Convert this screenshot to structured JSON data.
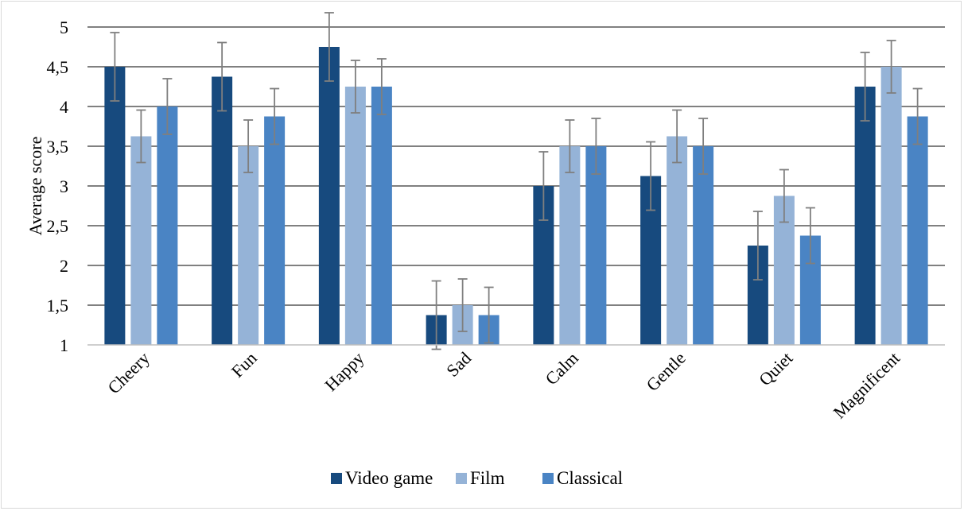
{
  "chart_data": {
    "type": "bar",
    "title": "",
    "xlabel": "",
    "ylabel": "Average score",
    "ylim": [
      1,
      5
    ],
    "yticks": [
      "1",
      "1,5",
      "2",
      "2,5",
      "3",
      "3,5",
      "4",
      "4,5",
      "5"
    ],
    "ytick_values": [
      1,
      1.5,
      2,
      2.5,
      3,
      3.5,
      4,
      4.5,
      5
    ],
    "grid": true,
    "legend_position": "bottom",
    "categories": [
      "Cheery",
      "Fun",
      "Happy",
      "Sad",
      "Calm",
      "Gentle",
      "Quiet",
      "Magnificent"
    ],
    "series": [
      {
        "name": "Video game",
        "color": "#174a7e",
        "values": [
          4.5,
          4.375,
          4.75,
          1.375,
          3.0,
          3.125,
          2.25,
          4.25
        ],
        "errors": [
          0.43,
          0.43,
          0.43,
          0.43,
          0.43,
          0.43,
          0.43,
          0.43
        ]
      },
      {
        "name": "Film",
        "color": "#95b3d7",
        "values": [
          3.625,
          3.5,
          4.25,
          1.5,
          3.5,
          3.625,
          2.875,
          4.5
        ],
        "errors": [
          0.33,
          0.33,
          0.33,
          0.33,
          0.33,
          0.33,
          0.33,
          0.33
        ]
      },
      {
        "name": "Classical",
        "color": "#4a84c4",
        "values": [
          4.0,
          3.875,
          4.25,
          1.375,
          3.5,
          3.5,
          2.375,
          3.875
        ],
        "errors": [
          0.35,
          0.35,
          0.35,
          0.35,
          0.35,
          0.35,
          0.35,
          0.35
        ]
      }
    ]
  }
}
